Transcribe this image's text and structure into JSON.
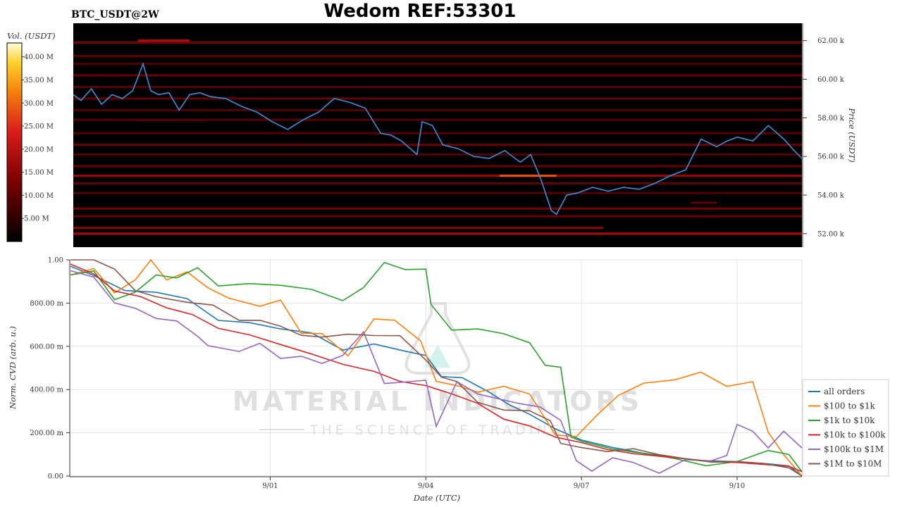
{
  "title": "Wedom REF:53301",
  "symbol_label": "BTC_USDT@2W",
  "watermark": {
    "brand": "MATERIAL INDICATORS",
    "tagline": "THE SCIENCE OF TRADING"
  },
  "colors": {
    "heatmap_bg": "#000000",
    "price_line": "#3a8fd6",
    "all_orders": "#1f77b4",
    "s100_1k": "#ff7f0e",
    "s1k_10k": "#2ca02c",
    "s10k_100k": "#d62728",
    "s100k_1m": "#9467bd",
    "s1m_10m": "#8c564b"
  },
  "chart_data": [
    {
      "type": "heatmap",
      "colorbar_label": "Vol. (USDT)",
      "colorbar_ticks": [
        "5.00 M",
        "10.00 M",
        "15.00 M",
        "20.00 M",
        "25.00 M",
        "30.00 M",
        "35.00 M",
        "40.00 M"
      ],
      "colorbar_values": [
        5,
        10,
        15,
        20,
        25,
        30,
        35,
        40
      ],
      "colorbar_range": [
        0,
        43
      ],
      "ylabel": "Price (USDT)",
      "y_ticks": [
        "52.00 k",
        "54.00 k",
        "56.00 k",
        "58.00 k",
        "60.00 k",
        "62.00 k"
      ],
      "y_tick_values": [
        52,
        54,
        56,
        58,
        60,
        62
      ],
      "ylim": [
        51.3,
        62.9
      ],
      "xlim": [
        -2.75,
        11.35
      ],
      "heat_bands": [
        {
          "price": 52.0,
          "vol": 18,
          "x0": -2.75,
          "x1": 11.35
        },
        {
          "price": 52.3,
          "vol": 14,
          "x0": -2.75,
          "x1": 7.5
        },
        {
          "price": 52.9,
          "vol": 11,
          "x0": -2.75,
          "x1": 11.35
        },
        {
          "price": 53.3,
          "vol": 12,
          "x0": -2.75,
          "x1": 11.35
        },
        {
          "price": 53.6,
          "vol": 10,
          "x0": 9.2,
          "x1": 9.7
        },
        {
          "price": 54.1,
          "vol": 9,
          "x0": -2.75,
          "x1": 11.35
        },
        {
          "price": 54.6,
          "vol": 10,
          "x0": -2.75,
          "x1": 11.35
        },
        {
          "price": 55.0,
          "vol": 16,
          "x0": -2.75,
          "x1": 11.35
        },
        {
          "price": 55.0,
          "vol": 28,
          "x0": 5.5,
          "x1": 6.6
        },
        {
          "price": 55.5,
          "vol": 10,
          "x0": -2.75,
          "x1": 11.35
        },
        {
          "price": 56.1,
          "vol": 8,
          "x0": -2.75,
          "x1": 11.35
        },
        {
          "price": 56.6,
          "vol": 11,
          "x0": -2.75,
          "x1": 11.35
        },
        {
          "price": 57.2,
          "vol": 9,
          "x0": -2.75,
          "x1": 11.35
        },
        {
          "price": 57.9,
          "vol": 26,
          "x0": -1.5,
          "x1": -0.2
        },
        {
          "price": 57.9,
          "vol": 9,
          "x0": -2.75,
          "x1": 11.35
        },
        {
          "price": 58.4,
          "vol": 8,
          "x0": -2.75,
          "x1": 11.35
        },
        {
          "price": 59.0,
          "vol": 10,
          "x0": -2.75,
          "x1": 11.35
        },
        {
          "price": 59.6,
          "vol": 9,
          "x0": -2.75,
          "x1": 11.35
        },
        {
          "price": 60.2,
          "vol": 11,
          "x0": -2.75,
          "x1": 11.35
        },
        {
          "price": 60.8,
          "vol": 8,
          "x0": -2.75,
          "x1": 11.35
        },
        {
          "price": 61.2,
          "vol": 9,
          "x0": -2.75,
          "x1": 11.35
        },
        {
          "price": 61.9,
          "vol": 12,
          "x0": -2.75,
          "x1": 11.35
        },
        {
          "price": 62.0,
          "vol": 18,
          "x0": -1.5,
          "x1": -0.5
        }
      ],
      "price_series": {
        "name": "BTC/USDT",
        "x": [
          -2.75,
          -2.6,
          -2.4,
          -2.2,
          -2.0,
          -1.8,
          -1.6,
          -1.4,
          -1.25,
          -1.1,
          -0.9,
          -0.7,
          -0.5,
          -0.3,
          -0.1,
          0.2,
          0.5,
          0.8,
          1.1,
          1.4,
          1.7,
          2.0,
          2.3,
          2.6,
          2.9,
          3.2,
          3.4,
          3.6,
          3.9,
          4.0,
          4.2,
          4.4,
          4.7,
          5.0,
          5.3,
          5.6,
          5.9,
          6.1,
          6.3,
          6.5,
          6.6,
          6.8,
          7.0,
          7.3,
          7.6,
          7.9,
          8.2,
          8.5,
          8.8,
          9.1,
          9.4,
          9.7,
          9.9,
          10.1,
          10.4,
          10.7,
          11.0,
          11.2,
          11.35
        ],
        "y": [
          59.2,
          58.9,
          59.5,
          58.7,
          59.2,
          59.0,
          59.4,
          60.8,
          59.4,
          59.2,
          59.3,
          58.4,
          59.2,
          59.3,
          59.1,
          59.0,
          58.6,
          58.3,
          57.8,
          57.4,
          57.9,
          58.3,
          59.0,
          58.8,
          58.5,
          57.2,
          57.1,
          56.8,
          56.1,
          57.8,
          57.6,
          56.6,
          56.4,
          56.0,
          55.9,
          56.3,
          55.7,
          56.1,
          54.8,
          53.2,
          53.0,
          54.0,
          54.1,
          54.4,
          54.2,
          54.4,
          54.3,
          54.6,
          55.0,
          55.3,
          56.9,
          56.5,
          56.8,
          57.0,
          56.8,
          57.6,
          56.9,
          56.3,
          55.9
        ]
      }
    },
    {
      "type": "line",
      "xlabel": "Date (UTC)",
      "ylabel": "Norm. CVD (arb. u.)",
      "x_ticks": [
        "9/01",
        "9/04",
        "9/07",
        "9/10"
      ],
      "x_tick_values": [
        1,
        4,
        7,
        10
      ],
      "xlim": [
        -2.85,
        11.25
      ],
      "y_ticks": [
        "0.00",
        "200.00 m",
        "400.00 m",
        "600.00 m",
        "800.00 m",
        "1.00"
      ],
      "y_tick_values": [
        0,
        0.2,
        0.4,
        0.6,
        0.8,
        1.0
      ],
      "ylim": [
        0,
        1.0
      ],
      "grid": true,
      "legend_position": "right",
      "series": [
        {
          "name": "all orders",
          "x": [
            -2.85,
            -2.4,
            -1.8,
            -1.2,
            -0.6,
            0.0,
            0.6,
            1.2,
            1.8,
            2.4,
            3.0,
            3.6,
            4.0,
            4.3,
            4.7,
            5.2,
            5.6,
            6.0,
            6.5,
            7.0,
            7.6,
            8.2,
            8.8,
            9.4,
            10.0,
            10.6,
            11.0,
            11.25
          ],
          "y": [
            0.97,
            0.93,
            0.86,
            0.85,
            0.82,
            0.72,
            0.71,
            0.68,
            0.66,
            0.58,
            0.61,
            0.58,
            0.55,
            0.46,
            0.45,
            0.39,
            0.33,
            0.28,
            0.22,
            0.17,
            0.13,
            0.1,
            0.08,
            0.07,
            0.07,
            0.06,
            0.05,
            0.0
          ]
        },
        {
          "name": "$100 to $1k",
          "x": [
            -2.85,
            -2.4,
            -2.0,
            -1.6,
            -1.3,
            -1.0,
            -0.6,
            -0.2,
            0.2,
            0.8,
            1.2,
            1.6,
            2.0,
            2.5,
            3.0,
            3.4,
            3.9,
            4.2,
            4.6,
            5.0,
            5.5,
            6.0,
            6.5,
            6.9,
            7.3,
            7.7,
            8.2,
            8.8,
            9.3,
            9.8,
            10.3,
            10.6,
            10.9,
            11.25
          ],
          "y": [
            0.93,
            0.96,
            0.85,
            0.91,
            1.0,
            0.91,
            0.94,
            0.87,
            0.82,
            0.78,
            0.82,
            0.66,
            0.66,
            0.56,
            0.72,
            0.72,
            0.63,
            0.44,
            0.42,
            0.38,
            0.42,
            0.38,
            0.19,
            0.18,
            0.28,
            0.37,
            0.43,
            0.45,
            0.48,
            0.41,
            0.44,
            0.2,
            0.1,
            0.0
          ]
        },
        {
          "name": "$1k to $10k",
          "x": [
            -2.85,
            -2.4,
            -2.0,
            -1.6,
            -1.2,
            -0.8,
            -0.4,
            0.0,
            0.6,
            1.2,
            1.8,
            2.4,
            2.8,
            3.2,
            3.6,
            4.0,
            4.1,
            4.5,
            5.0,
            5.5,
            6.0,
            6.3,
            6.6,
            6.8,
            7.0,
            7.6,
            8.2,
            8.8,
            9.4,
            10.0,
            10.6,
            11.0,
            11.25
          ],
          "y": [
            0.93,
            0.95,
            0.82,
            0.85,
            0.93,
            0.91,
            0.97,
            0.88,
            0.89,
            0.88,
            0.86,
            0.81,
            0.87,
            0.99,
            0.96,
            0.95,
            0.79,
            0.68,
            0.68,
            0.66,
            0.61,
            0.51,
            0.5,
            0.18,
            0.16,
            0.12,
            0.1,
            0.08,
            0.05,
            0.07,
            0.12,
            0.1,
            0.02
          ]
        },
        {
          "name": "$10k to $100k",
          "x": [
            -2.85,
            -2.4,
            -2.0,
            -1.5,
            -1.0,
            -0.5,
            0.0,
            0.6,
            1.2,
            1.8,
            2.4,
            3.0,
            3.5,
            4.0,
            4.5,
            5.0,
            5.5,
            6.0,
            6.5,
            7.0,
            7.5,
            8.0,
            8.5,
            9.0,
            9.5,
            10.0,
            10.5,
            11.0,
            11.25
          ],
          "y": [
            0.98,
            0.93,
            0.86,
            0.83,
            0.78,
            0.74,
            0.69,
            0.66,
            0.61,
            0.56,
            0.51,
            0.48,
            0.44,
            0.42,
            0.38,
            0.33,
            0.27,
            0.23,
            0.18,
            0.15,
            0.13,
            0.1,
            0.09,
            0.08,
            0.07,
            0.06,
            0.05,
            0.05,
            0.02
          ]
        },
        {
          "name": "$100k to $1M",
          "x": [
            -2.85,
            -2.4,
            -2.0,
            -1.6,
            -1.2,
            -0.8,
            -0.4,
            -0.2,
            0.4,
            0.8,
            1.2,
            1.6,
            2.0,
            2.4,
            2.8,
            3.2,
            3.6,
            4.0,
            4.2,
            4.6,
            5.0,
            5.4,
            5.8,
            6.2,
            6.6,
            6.9,
            7.2,
            7.6,
            8.0,
            8.5,
            9.0,
            9.5,
            9.8,
            10.0,
            10.3,
            10.6,
            10.9,
            11.25
          ],
          "y": [
            0.95,
            0.92,
            0.8,
            0.78,
            0.73,
            0.71,
            0.65,
            0.6,
            0.58,
            0.61,
            0.54,
            0.56,
            0.52,
            0.56,
            0.66,
            0.43,
            0.44,
            0.44,
            0.23,
            0.44,
            0.38,
            0.35,
            0.34,
            0.32,
            0.26,
            0.07,
            0.03,
            0.08,
            0.06,
            0.02,
            0.07,
            0.07,
            0.1,
            0.24,
            0.2,
            0.13,
            0.2,
            0.13
          ]
        },
        {
          "name": "$1M to $10M",
          "x": [
            -2.85,
            -2.4,
            -2.0,
            -1.6,
            -1.2,
            -0.6,
            -0.1,
            0.4,
            0.8,
            1.2,
            1.6,
            2.0,
            2.5,
            3.0,
            3.5,
            4.0,
            4.3,
            4.6,
            5.0,
            5.5,
            6.0,
            6.4,
            6.6,
            7.0,
            7.5,
            8.0,
            8.5,
            9.0,
            9.5,
            10.0,
            10.5,
            11.0,
            11.25
          ],
          "y": [
            1.0,
            1.0,
            0.96,
            0.86,
            0.83,
            0.81,
            0.79,
            0.72,
            0.72,
            0.69,
            0.65,
            0.65,
            0.65,
            0.65,
            0.65,
            0.54,
            0.46,
            0.44,
            0.34,
            0.31,
            0.3,
            0.25,
            0.15,
            0.13,
            0.12,
            0.12,
            0.1,
            0.08,
            0.07,
            0.06,
            0.06,
            0.04,
            0.0
          ]
        }
      ]
    }
  ]
}
